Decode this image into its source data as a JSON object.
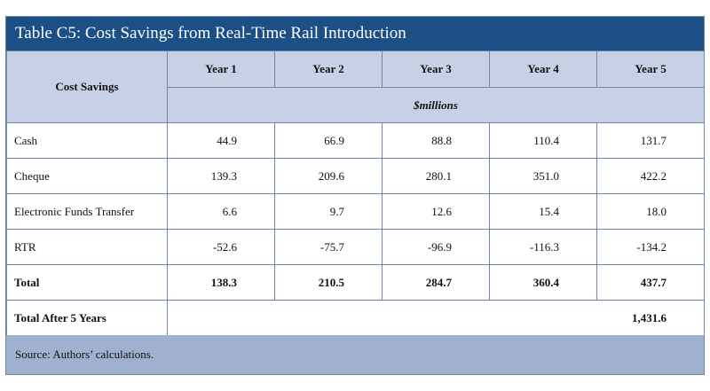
{
  "title": "Table C5: Cost Savings from Real-Time Rail Introduction",
  "header": {
    "row_label": "Cost Savings",
    "years": [
      "Year 1",
      "Year 2",
      "Year 3",
      "Year 4",
      "Year 5"
    ],
    "unit": "$millions"
  },
  "rows": [
    {
      "label": "Cash",
      "values": [
        "44.9",
        "66.9",
        "88.8",
        "110.4",
        "131.7"
      ]
    },
    {
      "label": "Cheque",
      "values": [
        "139.3",
        "209.6",
        "280.1",
        "351.0",
        "422.2"
      ]
    },
    {
      "label": "Electronic Funds Transfer",
      "values": [
        "6.6",
        "9.7",
        "12.6",
        "15.4",
        "18.0"
      ]
    },
    {
      "label": "RTR",
      "values": [
        "-52.6",
        "-75.7",
        "-96.9",
        "-116.3",
        "-134.2"
      ]
    },
    {
      "label": "Total",
      "values": [
        "138.3",
        "210.5",
        "284.7",
        "360.4",
        "437.7"
      ]
    }
  ],
  "total_after": {
    "label": "Total After 5 Years",
    "value": "1,431.6"
  },
  "source": "Source: Authors’ calculations."
}
